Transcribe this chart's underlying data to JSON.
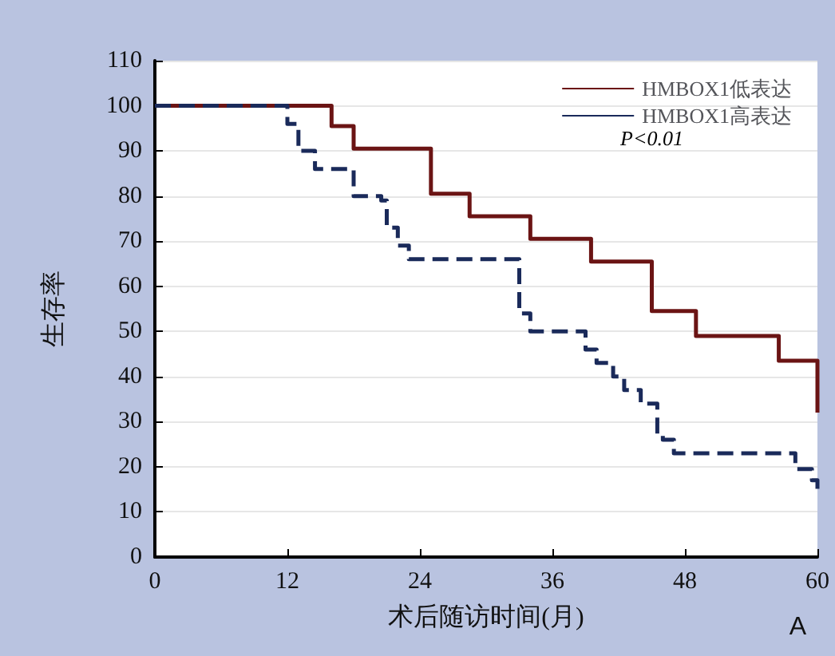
{
  "chart_data": {
    "type": "step",
    "xlabel": "术后随访时间(月)",
    "ylabel": "生存率",
    "xlim": [
      0,
      60
    ],
    "xticks": [
      0,
      12,
      24,
      36,
      48,
      60
    ],
    "ylim": [
      0,
      110
    ],
    "yticks": [
      0,
      10,
      20,
      30,
      40,
      50,
      60,
      70,
      80,
      90,
      100,
      110
    ],
    "grid": "y",
    "legend": "top right",
    "marker": "none",
    "annotations": [
      "P<0.01",
      "A"
    ],
    "series": [
      {
        "name": "HMBOX1低表达",
        "color": "#6b1414",
        "line_style": "solid",
        "x": [
          0,
          16,
          18,
          25,
          28.5,
          34,
          39.5,
          45,
          49,
          56.5,
          60,
          60
        ],
        "values": [
          100,
          95.5,
          90.5,
          80.5,
          75.5,
          70.5,
          65.5,
          54.5,
          49,
          43.5,
          43.5,
          32
        ]
      },
      {
        "name": "HMBOX1高表达",
        "color": "#1a2a5a",
        "line_style": "dashed",
        "x": [
          0,
          12,
          13,
          14.5,
          18,
          20.5,
          21,
          22,
          23,
          33,
          34,
          39,
          40,
          41.5,
          42.5,
          44,
          45.5,
          46,
          47,
          58,
          59.5,
          60
        ],
        "values": [
          100,
          96,
          90,
          86,
          80,
          79,
          73,
          69,
          66,
          54,
          50,
          46,
          43,
          40,
          37,
          34,
          27,
          26,
          23,
          19.5,
          17,
          15
        ]
      }
    ]
  }
}
